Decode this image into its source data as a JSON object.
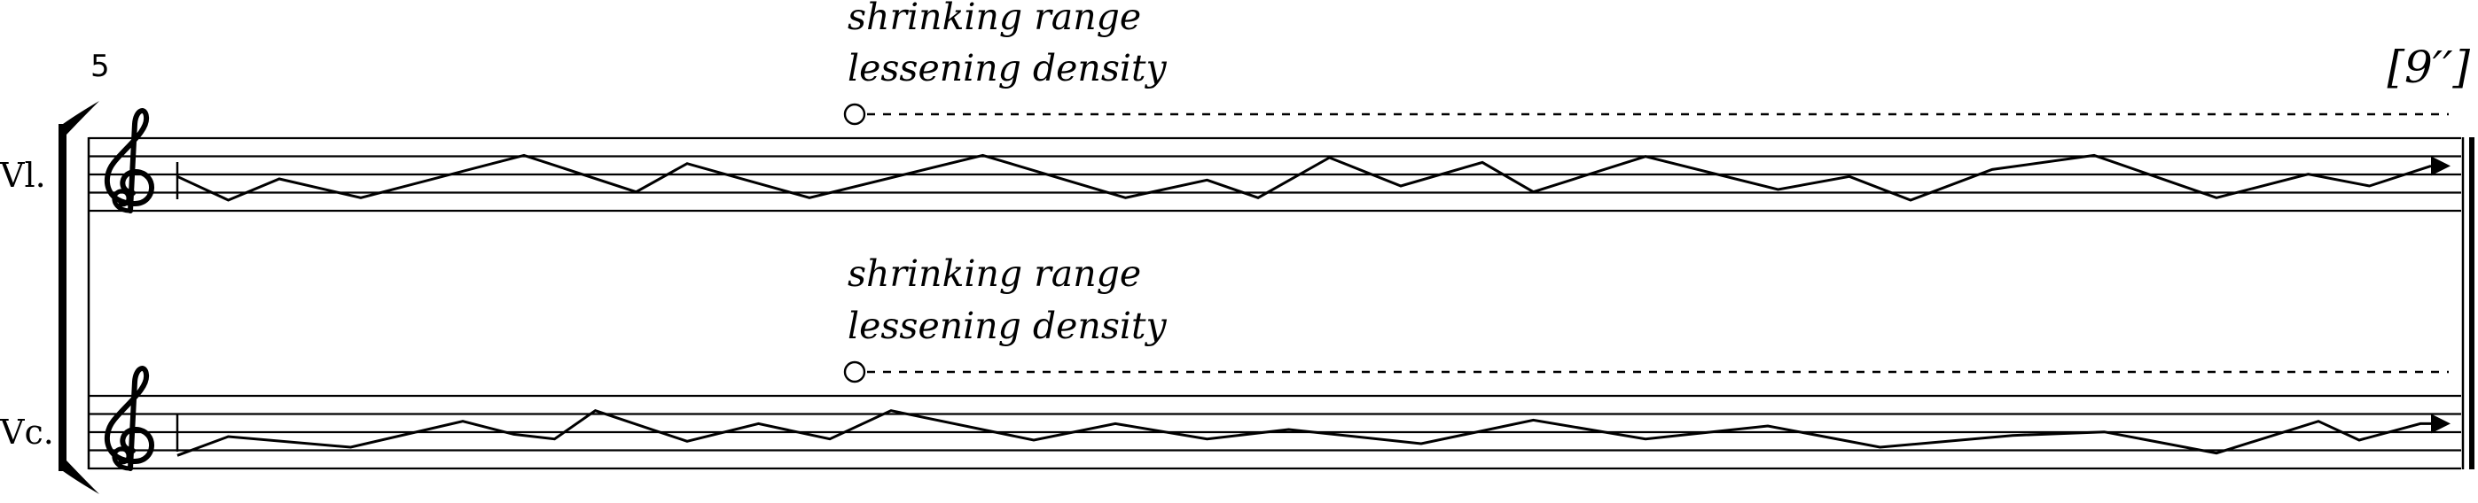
{
  "measure_number": "5",
  "duration": "[9′′]",
  "staves": [
    {
      "instrument": "Vl.",
      "annotation_line1": "shrinking range",
      "annotation_line2": "lessening density",
      "contour": [
        [
          0,
          1.0
        ],
        [
          0.025,
          0.0
        ],
        [
          0.05,
          0.9
        ],
        [
          0.09,
          0.1
        ],
        [
          0.17,
          1.9
        ],
        [
          0.225,
          0.35
        ],
        [
          0.25,
          1.55
        ],
        [
          0.31,
          0.1
        ],
        [
          0.395,
          1.9
        ],
        [
          0.465,
          0.1
        ],
        [
          0.505,
          0.85
        ],
        [
          0.53,
          0.1
        ],
        [
          0.565,
          1.8
        ],
        [
          0.6,
          0.6
        ],
        [
          0.64,
          1.6
        ],
        [
          0.665,
          0.35
        ],
        [
          0.72,
          1.85
        ],
        [
          0.785,
          0.45
        ],
        [
          0.82,
          1.0
        ],
        [
          0.85,
          0.0
        ],
        [
          0.89,
          1.3
        ],
        [
          0.94,
          1.9
        ],
        [
          1.0,
          0.1
        ],
        [
          1.045,
          1.1
        ],
        [
          1.075,
          0.6
        ],
        [
          1.115,
          1.45
        ],
        [
          1.2,
          1.45
        ]
      ]
    },
    {
      "instrument": "Vc.",
      "annotation_line1": "shrinking range",
      "annotation_line2": "lessening density",
      "contour": [
        [
          0,
          0.1
        ],
        [
          0.025,
          0.9
        ],
        [
          0.085,
          0.45
        ],
        [
          0.14,
          1.55
        ],
        [
          0.165,
          1.0
        ],
        [
          0.185,
          0.8
        ],
        [
          0.205,
          2.0
        ],
        [
          0.25,
          0.7
        ],
        [
          0.285,
          1.45
        ],
        [
          0.32,
          0.8
        ],
        [
          0.35,
          2.0
        ],
        [
          0.42,
          0.75
        ],
        [
          0.46,
          1.45
        ],
        [
          0.505,
          0.8
        ],
        [
          0.545,
          1.2
        ],
        [
          0.61,
          0.6
        ],
        [
          0.665,
          1.6
        ],
        [
          0.72,
          0.8
        ],
        [
          0.78,
          1.35
        ],
        [
          0.835,
          0.45
        ],
        [
          0.9,
          0.95
        ],
        [
          0.945,
          1.1
        ],
        [
          1.0,
          0.2
        ],
        [
          1.05,
          1.55
        ],
        [
          1.07,
          0.75
        ],
        [
          1.1,
          1.45
        ],
        [
          1.2,
          1.45
        ]
      ]
    }
  ]
}
